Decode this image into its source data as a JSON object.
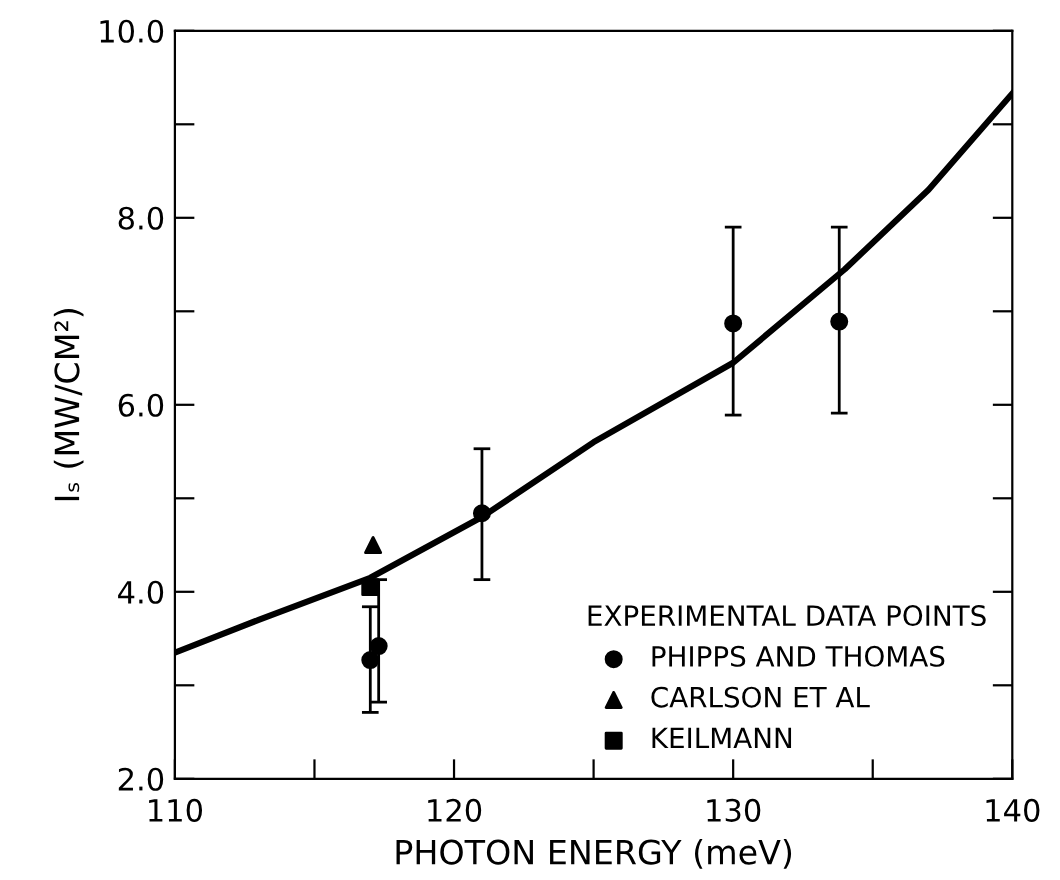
{
  "chart_data": {
    "type": "scatter",
    "xlabel": "PHOTON ENERGY (meV)",
    "ylabel": "Iₛ (MW/CM²)",
    "legend_title": "EXPERIMENTAL DATA POINTS",
    "xlim": [
      110,
      140
    ],
    "ylim": [
      2,
      10
    ],
    "xticks": [
      110,
      {
        "value": 115,
        "label": null
      },
      120,
      {
        "value": 125,
        "label": null
      },
      130,
      {
        "value": 135,
        "label": null
      },
      140
    ],
    "yticks": [
      {
        "value": 2,
        "label": "2.0"
      },
      {
        "value": 3,
        "label": null
      },
      {
        "value": 4,
        "label": "4.0"
      },
      {
        "value": 5,
        "label": null
      },
      {
        "value": 6,
        "label": "6.0"
      },
      {
        "value": 7,
        "label": null
      },
      {
        "value": 8,
        "label": "8.0"
      },
      {
        "value": 9,
        "label": null
      },
      {
        "value": 10,
        "label": "10.0"
      }
    ],
    "grid": false,
    "legend": "bottom right",
    "series": [
      {
        "type": "line",
        "color": "#000000",
        "x": [
          110,
          113,
          117,
          121,
          125,
          130,
          134,
          137,
          140
        ],
        "values": [
          3.35,
          3.7,
          4.15,
          4.8,
          5.6,
          6.45,
          7.45,
          8.3,
          9.33
        ]
      },
      {
        "name": "PHIPPS AND THOMAS",
        "marker": "circle",
        "color": "#000000",
        "x": [
          117.0,
          117.3,
          121.0,
          130.0,
          133.8
        ],
        "values": [
          3.27,
          3.42,
          4.84,
          6.87,
          6.89
        ],
        "errors": [
          [
            2.71,
            3.84
          ],
          [
            2.82,
            4.13
          ],
          [
            4.13,
            5.53
          ],
          [
            5.89,
            7.9
          ],
          [
            5.91,
            7.9
          ]
        ]
      },
      {
        "name": "CARLSON ET AL",
        "marker": "triangle",
        "color": "#000000",
        "x": [
          117.1
        ],
        "values": [
          4.5
        ]
      },
      {
        "name": "KEILMANN",
        "marker": "square",
        "color": "#000000",
        "x": [
          117.0
        ],
        "values": [
          4.05
        ]
      }
    ]
  }
}
